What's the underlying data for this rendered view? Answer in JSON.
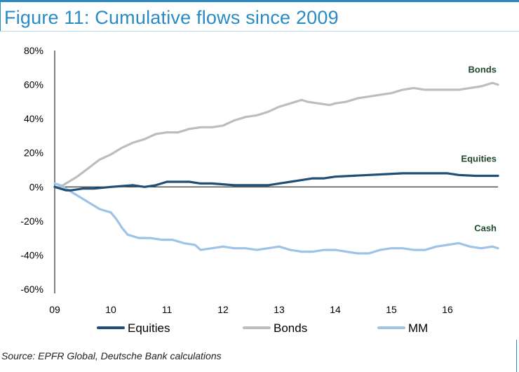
{
  "title": "Figure 11: Cumulative flows since 2009",
  "source": "Source: EPFR Global, Deutsche Bank calculations",
  "chart_data": {
    "type": "line",
    "title": "Figure 11: Cumulative flows since 2009",
    "xlabel": "",
    "ylabel": "",
    "xlim": [
      2009,
      2016.9
    ],
    "ylim": [
      -60,
      80
    ],
    "x_ticks": [
      {
        "value": 2009,
        "label": "09"
      },
      {
        "value": 2010,
        "label": "10"
      },
      {
        "value": 2011,
        "label": "11"
      },
      {
        "value": 2012,
        "label": "12"
      },
      {
        "value": 2013,
        "label": "13"
      },
      {
        "value": 2014,
        "label": "14"
      },
      {
        "value": 2015,
        "label": "15"
      },
      {
        "value": 2016,
        "label": "16"
      }
    ],
    "y_ticks": [
      {
        "value": 80,
        "label": "80%"
      },
      {
        "value": 60,
        "label": "60%"
      },
      {
        "value": 40,
        "label": "40%"
      },
      {
        "value": 20,
        "label": "20%"
      },
      {
        "value": 0,
        "label": "0%"
      },
      {
        "value": -20,
        "label": "-20%"
      },
      {
        "value": -40,
        "label": "-40%"
      },
      {
        "value": -60,
        "label": "-60%"
      }
    ],
    "grid": false,
    "legend_position": "bottom",
    "series": [
      {
        "name": "Equities",
        "label": "Equities",
        "color": "#1f4e79",
        "points": [
          [
            2009.0,
            0
          ],
          [
            2009.1,
            -1
          ],
          [
            2009.2,
            -2
          ],
          [
            2009.3,
            -2
          ],
          [
            2009.5,
            -1
          ],
          [
            2009.7,
            -1
          ],
          [
            2010.0,
            0
          ],
          [
            2010.2,
            0.5
          ],
          [
            2010.4,
            1
          ],
          [
            2010.6,
            0
          ],
          [
            2010.8,
            1
          ],
          [
            2011.0,
            3
          ],
          [
            2011.2,
            3
          ],
          [
            2011.4,
            3
          ],
          [
            2011.6,
            2
          ],
          [
            2011.8,
            2
          ],
          [
            2012.0,
            1.5
          ],
          [
            2012.2,
            1
          ],
          [
            2012.5,
            1
          ],
          [
            2012.8,
            1
          ],
          [
            2013.0,
            2
          ],
          [
            2013.2,
            3
          ],
          [
            2013.4,
            4
          ],
          [
            2013.6,
            5
          ],
          [
            2013.8,
            5
          ],
          [
            2014.0,
            6
          ],
          [
            2014.3,
            6.5
          ],
          [
            2014.6,
            7
          ],
          [
            2014.9,
            7.5
          ],
          [
            2015.2,
            8
          ],
          [
            2015.5,
            8
          ],
          [
            2015.8,
            8
          ],
          [
            2016.0,
            8
          ],
          [
            2016.2,
            7
          ],
          [
            2016.5,
            6.5
          ],
          [
            2016.9,
            6.5
          ]
        ]
      },
      {
        "name": "Bonds",
        "label": "Bonds",
        "color": "#bdbdbd",
        "points": [
          [
            2009.0,
            0
          ],
          [
            2009.1,
            0
          ],
          [
            2009.2,
            2
          ],
          [
            2009.4,
            6
          ],
          [
            2009.6,
            11
          ],
          [
            2009.8,
            16
          ],
          [
            2010.0,
            19
          ],
          [
            2010.2,
            23
          ],
          [
            2010.4,
            26
          ],
          [
            2010.6,
            28
          ],
          [
            2010.8,
            31
          ],
          [
            2011.0,
            32
          ],
          [
            2011.2,
            32
          ],
          [
            2011.4,
            34
          ],
          [
            2011.6,
            35
          ],
          [
            2011.8,
            35
          ],
          [
            2012.0,
            36
          ],
          [
            2012.2,
            39
          ],
          [
            2012.4,
            41
          ],
          [
            2012.6,
            42
          ],
          [
            2012.8,
            44
          ],
          [
            2013.0,
            47
          ],
          [
            2013.2,
            49
          ],
          [
            2013.4,
            51
          ],
          [
            2013.5,
            50
          ],
          [
            2013.7,
            49
          ],
          [
            2013.9,
            48
          ],
          [
            2014.0,
            49
          ],
          [
            2014.2,
            50
          ],
          [
            2014.4,
            52
          ],
          [
            2014.6,
            53
          ],
          [
            2014.8,
            54
          ],
          [
            2015.0,
            55
          ],
          [
            2015.2,
            57
          ],
          [
            2015.4,
            58
          ],
          [
            2015.6,
            57
          ],
          [
            2015.8,
            57
          ],
          [
            2016.0,
            57
          ],
          [
            2016.2,
            57
          ],
          [
            2016.4,
            58
          ],
          [
            2016.6,
            59
          ],
          [
            2016.8,
            61
          ],
          [
            2016.9,
            60
          ]
        ]
      },
      {
        "name": "MM",
        "label": "Cash",
        "color": "#9dc3e6",
        "points": [
          [
            2009.0,
            2
          ],
          [
            2009.1,
            1
          ],
          [
            2009.2,
            -1
          ],
          [
            2009.3,
            -3
          ],
          [
            2009.4,
            -5
          ],
          [
            2009.6,
            -9
          ],
          [
            2009.8,
            -13
          ],
          [
            2010.0,
            -15
          ],
          [
            2010.1,
            -19
          ],
          [
            2010.2,
            -24
          ],
          [
            2010.3,
            -28
          ],
          [
            2010.5,
            -30
          ],
          [
            2010.7,
            -30
          ],
          [
            2010.9,
            -31
          ],
          [
            2011.1,
            -31
          ],
          [
            2011.3,
            -33
          ],
          [
            2011.5,
            -34
          ],
          [
            2011.6,
            -37
          ],
          [
            2011.8,
            -36
          ],
          [
            2012.0,
            -35
          ],
          [
            2012.2,
            -36
          ],
          [
            2012.4,
            -36
          ],
          [
            2012.6,
            -37
          ],
          [
            2012.8,
            -36
          ],
          [
            2013.0,
            -35
          ],
          [
            2013.2,
            -37
          ],
          [
            2013.4,
            -38
          ],
          [
            2013.6,
            -38
          ],
          [
            2013.8,
            -37
          ],
          [
            2014.0,
            -37
          ],
          [
            2014.2,
            -38
          ],
          [
            2014.4,
            -39
          ],
          [
            2014.6,
            -39
          ],
          [
            2014.8,
            -37
          ],
          [
            2015.0,
            -36
          ],
          [
            2015.2,
            -36
          ],
          [
            2015.4,
            -37
          ],
          [
            2015.6,
            -37
          ],
          [
            2015.8,
            -35
          ],
          [
            2016.0,
            -34
          ],
          [
            2016.2,
            -33
          ],
          [
            2016.4,
            -35
          ],
          [
            2016.6,
            -36
          ],
          [
            2016.8,
            -35
          ],
          [
            2016.9,
            -36
          ]
        ]
      }
    ],
    "legend": [
      {
        "name": "Equities",
        "color": "#1f4e79"
      },
      {
        "name": "Bonds",
        "color": "#bdbdbd"
      },
      {
        "name": "MM",
        "color": "#9dc3e6"
      }
    ]
  }
}
